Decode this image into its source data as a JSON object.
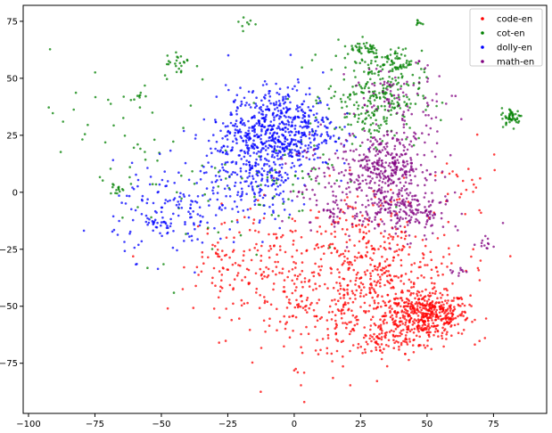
{
  "chart_data": {
    "type": "scatter",
    "title": "",
    "xlabel": "",
    "ylabel": "",
    "xlim": [
      -102,
      95
    ],
    "ylim": [
      -97,
      82
    ],
    "xticks": [
      -100,
      -75,
      -50,
      -25,
      0,
      25,
      50,
      75
    ],
    "yticks": [
      -75,
      -50,
      -25,
      0,
      25,
      50,
      75
    ],
    "grid": false,
    "legend_position": "top-right",
    "series": [
      {
        "name": "code-en",
        "color": "#ff0000",
        "clusters": [
          {
            "cx": 50,
            "cy": -54,
            "sx": 8,
            "sy": 5,
            "n": 420
          },
          {
            "cx": 34,
            "cy": -40,
            "sx": 15,
            "sy": 15,
            "n": 380
          },
          {
            "cx": 12,
            "cy": -48,
            "sx": 18,
            "sy": 14,
            "n": 260
          },
          {
            "cx": -8,
            "cy": -30,
            "sx": 14,
            "sy": 12,
            "n": 110
          },
          {
            "cx": 33,
            "cy": -66,
            "sx": 6,
            "sy": 3,
            "n": 60
          },
          {
            "cx": 25,
            "cy": -12,
            "sx": 10,
            "sy": 8,
            "n": 60
          },
          {
            "cx": 62,
            "cy": 2,
            "sx": 8,
            "sy": 8,
            "n": 25
          },
          {
            "cx": -28,
            "cy": -34,
            "sx": 6,
            "sy": 8,
            "n": 40
          }
        ]
      },
      {
        "name": "cot-en",
        "color": "#008000",
        "clusters": [
          {
            "cx": 30,
            "cy": 42,
            "sx": 9,
            "sy": 10,
            "n": 280
          },
          {
            "cx": 38,
            "cy": 57,
            "sx": 3,
            "sy": 3,
            "n": 50
          },
          {
            "cx": 27,
            "cy": 63,
            "sx": 3,
            "sy": 2,
            "n": 40
          },
          {
            "cx": 82,
            "cy": 33,
            "sx": 2,
            "sy": 2,
            "n": 50
          },
          {
            "cx": -43,
            "cy": 56,
            "sx": 3,
            "sy": 3,
            "n": 25
          },
          {
            "cx": -67,
            "cy": 2,
            "sx": 1.5,
            "sy": 1.5,
            "n": 15
          },
          {
            "cx": -58,
            "cy": 42,
            "sx": 2,
            "sy": 1,
            "n": 8
          },
          {
            "cx": 47,
            "cy": 74,
            "sx": 1,
            "sy": 1,
            "n": 8
          },
          {
            "cx": -18,
            "cy": 74,
            "sx": 2,
            "sy": 2,
            "n": 8
          },
          {
            "cx": -30,
            "cy": 10,
            "sx": 25,
            "sy": 20,
            "n": 60
          },
          {
            "cx": -75,
            "cy": 30,
            "sx": 12,
            "sy": 15,
            "n": 25
          },
          {
            "cx": -5,
            "cy": 5,
            "sx": 10,
            "sy": 10,
            "n": 40
          }
        ]
      },
      {
        "name": "dolly-en",
        "color": "#0000ff",
        "clusters": [
          {
            "cx": -5,
            "cy": 28,
            "sx": 10,
            "sy": 9,
            "n": 520
          },
          {
            "cx": -18,
            "cy": 18,
            "sx": 8,
            "sy": 10,
            "n": 200
          },
          {
            "cx": -42,
            "cy": -8,
            "sx": 13,
            "sy": 10,
            "n": 160
          },
          {
            "cx": -12,
            "cy": 0,
            "sx": 7,
            "sy": 8,
            "n": 80
          },
          {
            "cx": -50,
            "cy": -14,
            "sx": 3,
            "sy": 2,
            "n": 25
          }
        ]
      },
      {
        "name": "math-en",
        "color": "#800080",
        "clusters": [
          {
            "cx": 35,
            "cy": 12,
            "sx": 8,
            "sy": 7,
            "n": 300
          },
          {
            "cx": 40,
            "cy": -8,
            "sx": 9,
            "sy": 6,
            "n": 230
          },
          {
            "cx": 15,
            "cy": 5,
            "sx": 10,
            "sy": 10,
            "n": 100
          },
          {
            "cx": 40,
            "cy": 42,
            "sx": 10,
            "sy": 7,
            "n": 90
          },
          {
            "cx": 73,
            "cy": -22,
            "sx": 2,
            "sy": 1.5,
            "n": 12
          },
          {
            "cx": 62,
            "cy": -35,
            "sx": 2,
            "sy": 1.5,
            "n": 10
          },
          {
            "cx": 15,
            "cy": -8,
            "sx": 3,
            "sy": 2,
            "n": 20
          }
        ]
      }
    ]
  }
}
